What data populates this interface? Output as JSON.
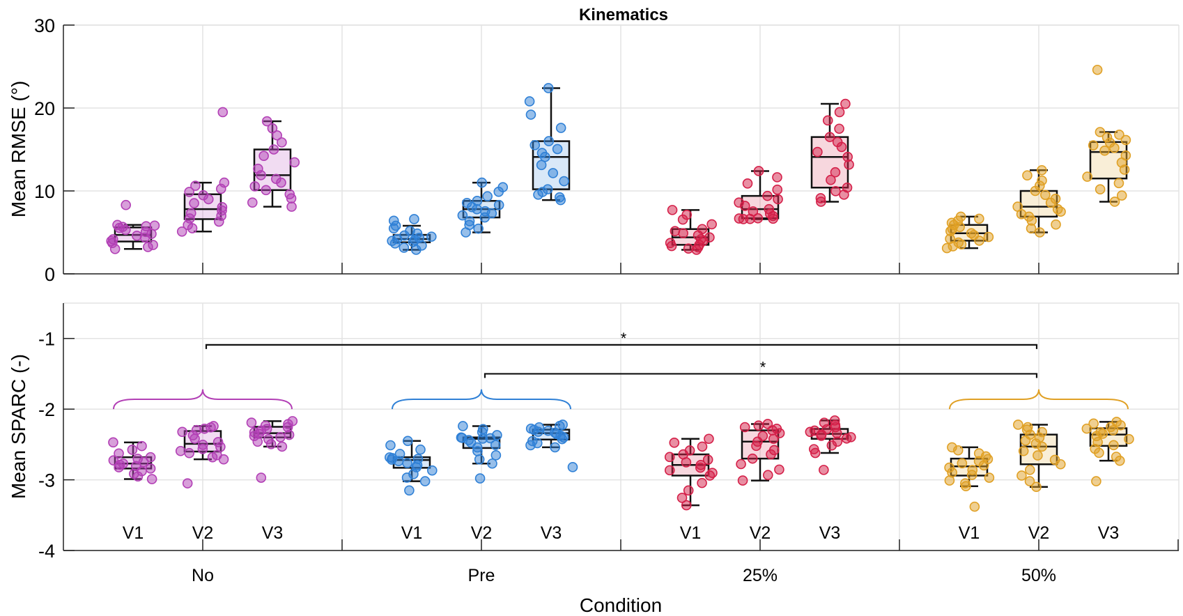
{
  "chart_data": {
    "type": "box",
    "title": "Kinematics",
    "xlabel": "Condition",
    "categories": [
      "No",
      "Pre",
      "25%",
      "50%"
    ],
    "subcategories": [
      "V1",
      "V2",
      "V3"
    ],
    "colors": {
      "No": "#b23fb5",
      "Pre": "#2f80d6",
      "25%": "#d41f48",
      "50%": "#e0a024"
    },
    "panels": [
      {
        "id": "rmse",
        "ylabel": "Mean RMSE (°)",
        "ylim": [
          0,
          30
        ],
        "yticks": [
          0,
          10,
          20,
          30
        ],
        "grid": true,
        "groups": [
          {
            "condition": "No",
            "boxes": [
              {
                "label": "V1",
                "whisker_low": 3.0,
                "q1": 3.9,
                "median": 4.7,
                "q3": 5.6,
                "whisker_high": 5.9,
                "outliers": [
                  8.3
                ]
              },
              {
                "label": "V2",
                "whisker_low": 5.1,
                "q1": 6.6,
                "median": 7.8,
                "q3": 9.6,
                "whisker_high": 11.0,
                "outliers": [
                  19.5
                ]
              },
              {
                "label": "V3",
                "whisker_low": 8.1,
                "q1": 10.1,
                "median": 11.9,
                "q3": 15.0,
                "whisker_high": 18.4,
                "outliers": []
              }
            ]
          },
          {
            "condition": "Pre",
            "boxes": [
              {
                "label": "V1",
                "whisker_low": 2.9,
                "q1": 3.8,
                "median": 4.2,
                "q3": 4.7,
                "whisker_high": 5.8,
                "outliers": [
                  6.6,
                  6.4
                ]
              },
              {
                "label": "V2",
                "whisker_low": 5.0,
                "q1": 6.8,
                "median": 7.8,
                "q3": 8.8,
                "whisker_high": 11.0,
                "outliers": []
              },
              {
                "label": "V3",
                "whisker_low": 8.9,
                "q1": 10.2,
                "median": 14.1,
                "q3": 16.0,
                "whisker_high": 22.4,
                "outliers": []
              }
            ]
          },
          {
            "condition": "25%",
            "boxes": [
              {
                "label": "V1",
                "whisker_low": 2.9,
                "q1": 3.5,
                "median": 4.4,
                "q3": 5.4,
                "whisker_high": 7.7,
                "outliers": []
              },
              {
                "label": "V2",
                "whisker_low": 6.6,
                "q1": 6.7,
                "median": 7.8,
                "q3": 9.4,
                "whisker_high": 12.4,
                "outliers": []
              },
              {
                "label": "V3",
                "whisker_low": 8.7,
                "q1": 10.4,
                "median": 14.1,
                "q3": 16.5,
                "whisker_high": 20.5,
                "outliers": []
              }
            ]
          },
          {
            "condition": "50%",
            "boxes": [
              {
                "label": "V1",
                "whisker_low": 3.1,
                "q1": 4.0,
                "median": 4.9,
                "q3": 5.9,
                "whisker_high": 6.9,
                "outliers": []
              },
              {
                "label": "V2",
                "whisker_low": 5.0,
                "q1": 6.9,
                "median": 8.1,
                "q3": 10.0,
                "whisker_high": 12.5,
                "outliers": []
              },
              {
                "label": "V3",
                "whisker_low": 8.7,
                "q1": 11.5,
                "median": 14.7,
                "q3": 15.9,
                "whisker_high": 17.1,
                "outliers": [
                  24.6
                ]
              }
            ]
          }
        ]
      },
      {
        "id": "sparc",
        "ylabel": "Mean SPARC (-)",
        "ylim": [
          -4,
          -0.5
        ],
        "yticks": [
          -4,
          -3,
          -2,
          -1
        ],
        "grid": true,
        "groups": [
          {
            "condition": "No",
            "boxes": [
              {
                "label": "V1",
                "whisker_low": -2.99,
                "q1": -2.84,
                "median": -2.77,
                "q3": -2.68,
                "whisker_high": -2.47,
                "outliers": []
              },
              {
                "label": "V2",
                "whisker_low": -2.71,
                "q1": -2.6,
                "median": -2.49,
                "q3": -2.31,
                "whisker_high": -2.24,
                "outliers": [
                  -3.05
                ]
              },
              {
                "label": "V3",
                "whisker_low": -2.53,
                "q1": -2.4,
                "median": -2.34,
                "q3": -2.25,
                "whisker_high": -2.17,
                "outliers": [
                  -2.97
                ]
              }
            ]
          },
          {
            "condition": "Pre",
            "boxes": [
              {
                "label": "V1",
                "whisker_low": -3.02,
                "q1": -2.83,
                "median": -2.72,
                "q3": -2.68,
                "whisker_high": -2.45,
                "outliers": [
                  -3.15
                ]
              },
              {
                "label": "V2",
                "whisker_low": -2.77,
                "q1": -2.55,
                "median": -2.42,
                "q3": -2.4,
                "whisker_high": -2.24,
                "outliers": [
                  -2.98
                ]
              },
              {
                "label": "V3",
                "whisker_low": -2.54,
                "q1": -2.43,
                "median": -2.34,
                "q3": -2.29,
                "whisker_high": -2.22,
                "outliers": [
                  -2.82
                ]
              }
            ]
          },
          {
            "condition": "25%",
            "boxes": [
              {
                "label": "V1",
                "whisker_low": -3.36,
                "q1": -2.94,
                "median": -2.79,
                "q3": -2.64,
                "whisker_high": -2.42,
                "outliers": []
              },
              {
                "label": "V2",
                "whisker_low": -3.01,
                "q1": -2.7,
                "median": -2.46,
                "q3": -2.3,
                "whisker_high": -2.21,
                "outliers": []
              },
              {
                "label": "V3",
                "whisker_low": -2.62,
                "q1": -2.42,
                "median": -2.35,
                "q3": -2.28,
                "whisker_high": -2.16,
                "outliers": [
                  -2.86
                ]
              }
            ]
          },
          {
            "condition": "50%",
            "boxes": [
              {
                "label": "V1",
                "whisker_low": -3.09,
                "q1": -2.94,
                "median": -2.81,
                "q3": -2.7,
                "whisker_high": -2.54,
                "outliers": [
                  -3.38
                ]
              },
              {
                "label": "V2",
                "whisker_low": -3.1,
                "q1": -2.78,
                "median": -2.53,
                "q3": -2.36,
                "whisker_high": -2.22,
                "outliers": []
              },
              {
                "label": "V3",
                "whisker_low": -2.73,
                "q1": -2.52,
                "median": -2.36,
                "q3": -2.27,
                "whisker_high": -2.18,
                "outliers": [
                  -3.02
                ]
              }
            ]
          }
        ],
        "braces": [
          "No",
          "Pre",
          "50%"
        ],
        "significance": [
          {
            "from": "No",
            "to": "50%",
            "level": -1.09,
            "label": "*"
          },
          {
            "from": "Pre",
            "to": "50%",
            "level": -1.5,
            "label": "*"
          }
        ]
      }
    ]
  }
}
